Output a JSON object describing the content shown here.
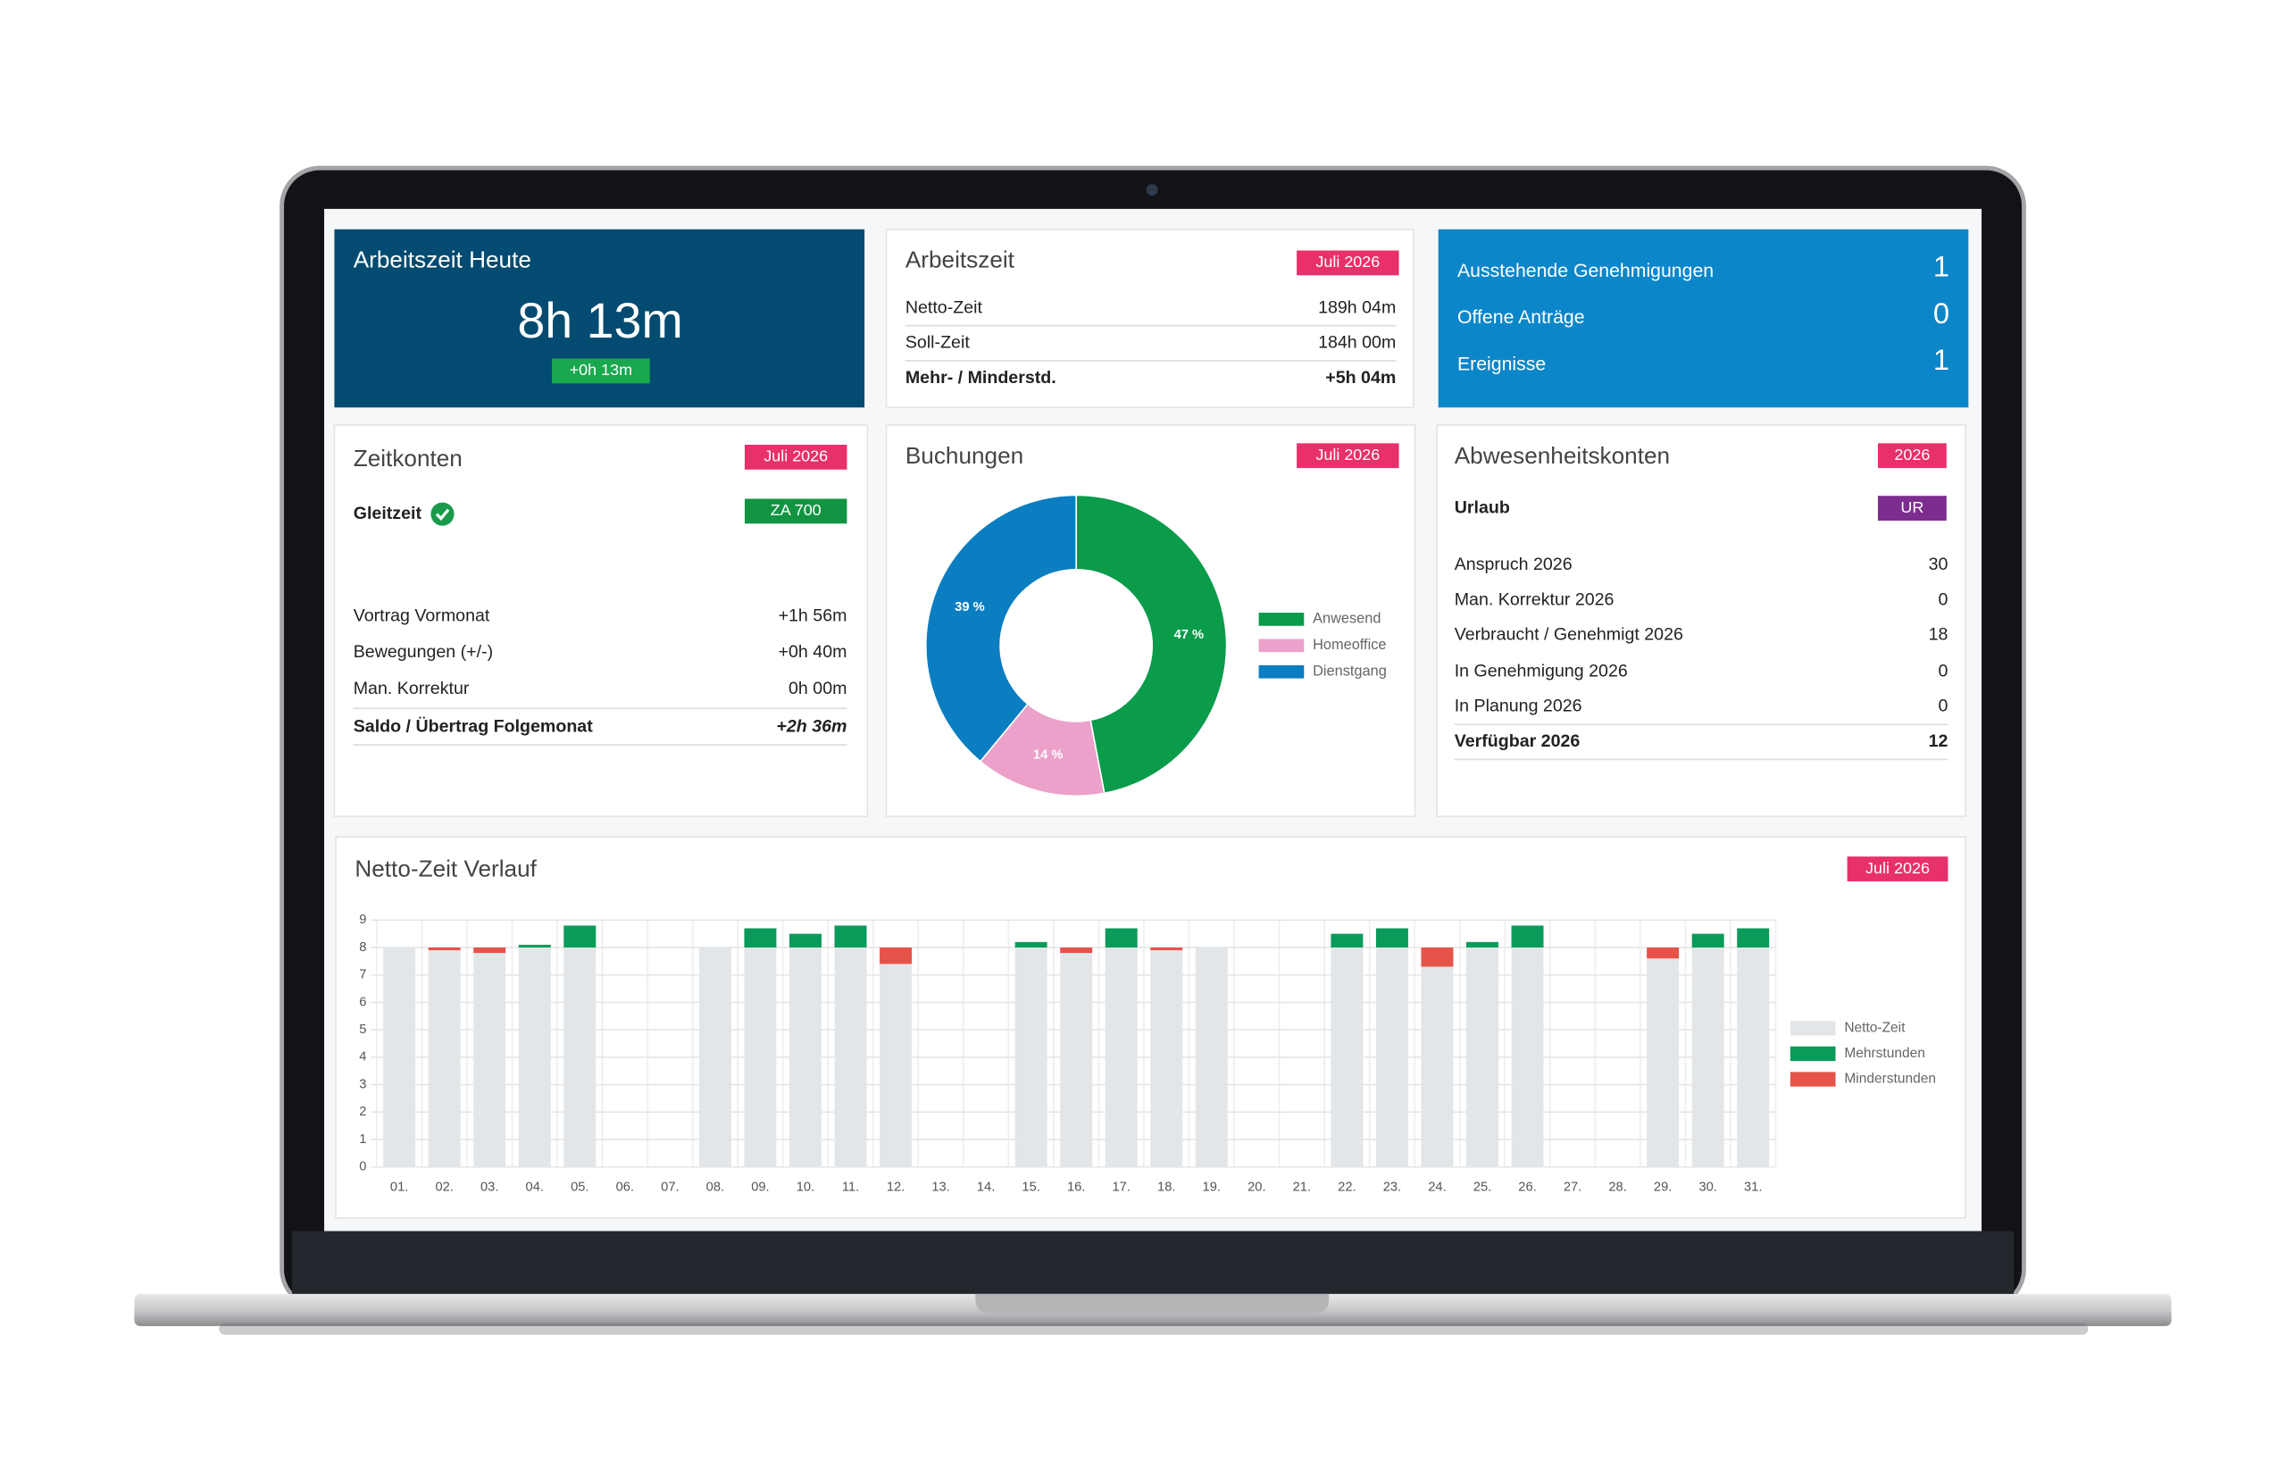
{
  "cards": {
    "today": {
      "title": "Arbeitszeit Heute",
      "value": "8h 13m",
      "delta": "+0h 13m"
    },
    "arbeitszeit": {
      "title": "Arbeitszeit",
      "badge": "Juli 2026",
      "rows": [
        [
          "Netto-Zeit",
          "189h 04m"
        ],
        [
          "Soll-Zeit",
          "184h 00m"
        ],
        [
          "Mehr- / Minderstd.",
          "+5h 04m"
        ]
      ]
    },
    "pending": {
      "rows": [
        [
          "Ausstehende Genehmigungen",
          1
        ],
        [
          "Offene Anträge",
          0
        ],
        [
          "Ereignisse",
          1
        ]
      ]
    },
    "zeitkonten": {
      "title": "Zeitkonten",
      "badge": "Juli 2026",
      "account": "Gleitzeit",
      "account_badge": "ZA 700",
      "rows": [
        [
          "Vortrag Vormonat",
          "+1h 56m"
        ],
        [
          "Bewegungen (+/-)",
          "+0h 40m"
        ],
        [
          "Man. Korrektur",
          "0h 00m"
        ],
        [
          "Saldo / Übertrag Folgemonat",
          "+2h 36m"
        ]
      ]
    },
    "abwesenheit": {
      "title": "Abwesenheitskonten",
      "badge": "2026",
      "account": "Urlaub",
      "account_badge": "UR",
      "rows": [
        [
          "Anspruch 2026",
          30
        ],
        [
          "Man. Korrektur 2026",
          0
        ],
        [
          "Verbraucht / Genehmigt 2026",
          18
        ],
        [
          "In Genehmigung 2026",
          0
        ],
        [
          "In Planung 2026",
          0
        ],
        [
          "Verfügbar 2026",
          12
        ]
      ]
    }
  },
  "chart_data": [
    {
      "type": "pie",
      "title": "Buchungen",
      "badge": "Juli 2026",
      "donut": true,
      "legend": "right",
      "categories": [
        "Anwesend",
        "Homeoffice",
        "Dienstgang"
      ],
      "values": [
        47,
        14,
        39
      ],
      "value_labels": [
        "47 %",
        "14 %",
        "39 %"
      ],
      "colors": [
        "#0a9b4b",
        "#eba1c9",
        "#0b7dc1"
      ]
    },
    {
      "type": "bar",
      "title": "Netto-Zeit Verlauf",
      "badge": "Juli 2026",
      "stacked": true,
      "grid": true,
      "legend": "right",
      "categories": [
        "01.",
        "02.",
        "03.",
        "04.",
        "05.",
        "06.",
        "07.",
        "08.",
        "09.",
        "10.",
        "11.",
        "12.",
        "13.",
        "14.",
        "15.",
        "16.",
        "17.",
        "18.",
        "19.",
        "20.",
        "21.",
        "22.",
        "23.",
        "24.",
        "25.",
        "26.",
        "27.",
        "28.",
        "29.",
        "30.",
        "31."
      ],
      "series": [
        {
          "name": "Netto-Zeit",
          "color": "#e3e6e8",
          "values": [
            8,
            7.9,
            7.8,
            8,
            8,
            null,
            null,
            8,
            8,
            8,
            8,
            7.4,
            null,
            null,
            8,
            7.8,
            8,
            7.9,
            8,
            null,
            null,
            8,
            8,
            7.3,
            8,
            8,
            null,
            null,
            7.6,
            8,
            8
          ]
        },
        {
          "name": "Mehrstunden",
          "color": "#0a9b5a",
          "values": [
            null,
            null,
            null,
            0.1,
            0.8,
            null,
            null,
            null,
            0.7,
            0.5,
            0.8,
            null,
            null,
            null,
            0.2,
            null,
            0.7,
            null,
            null,
            null,
            null,
            0.5,
            0.7,
            null,
            0.2,
            0.8,
            null,
            null,
            null,
            0.5,
            0.7
          ]
        },
        {
          "name": "Minderstunden",
          "color": "#e5534b",
          "values": [
            null,
            0.1,
            0.2,
            null,
            null,
            null,
            null,
            null,
            null,
            null,
            null,
            0.6,
            null,
            null,
            null,
            0.2,
            null,
            0.1,
            null,
            null,
            null,
            null,
            null,
            0.7,
            null,
            null,
            null,
            null,
            0.4,
            null,
            null
          ]
        }
      ],
      "ylim": [
        0,
        9
      ],
      "yticks": [
        0,
        1,
        2,
        3,
        4,
        5,
        6,
        7,
        8,
        9
      ]
    }
  ]
}
